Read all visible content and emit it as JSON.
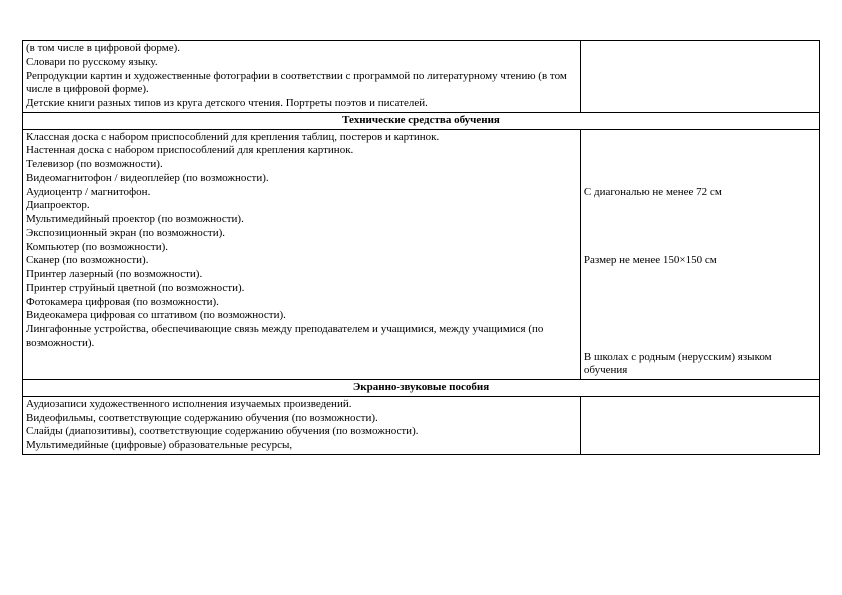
{
  "table": {
    "col_widths": [
      "70%",
      "30%"
    ],
    "rows": [
      {
        "type": "data",
        "left_lines": [
          "(в том числе в цифровой форме).",
          "Словари по русскому языку.",
          "Репродукции картин и художественные фотографии в соответствии с программой по литературному чтению (в том числе в цифровой форме).",
          "Детские книги разных типов из круга детского чтения. Портреты поэтов и писателей."
        ],
        "right_lines": []
      },
      {
        "type": "header",
        "text": "Технические средства обучения"
      },
      {
        "type": "data",
        "left_lines": [
          "Классная доска с набором приспособлений для крепления таблиц, постеров и картинок.",
          "Настенная доска с набором приспособлений для крепления картинок.",
          "Телевизор (по возможности).",
          "Видеомагнитофон / видеоплейер (по возможности).",
          "Аудиоцентр / магнитофон.",
          "Диапроектор.",
          "Мультимедийный проектор (по возможности).",
          "Экспозиционный экран (по возможности).",
          "Компьютер (по возможности).",
          "Сканер (по возможности).",
          "Принтер лазерный (по возможности).",
          "Принтер струйный цветной (по возможности).",
          "Фотокамера цифровая (по возможности).",
          "Видеокамера цифровая со штативом (по возможности).",
          "Лингафонные устройства, обеспечивающие связь между преподавателем и учащимися, между учащимися (по возможности)."
        ],
        "right_lines": [
          {
            "text": "",
            "blank_before": 0
          },
          {
            "text": "",
            "blank_before": 0
          },
          {
            "text": "",
            "blank_before": 0
          },
          {
            "text": "",
            "blank_before": 0
          },
          {
            "text": "С диагональю не менее 72 см",
            "blank_before": 0
          },
          {
            "text": "",
            "blank_before": 0
          },
          {
            "text": "",
            "blank_before": 0
          },
          {
            "text": "",
            "blank_before": 0
          },
          {
            "text": "",
            "blank_before": 0
          },
          {
            "text": "Размер не менее 150×150 см",
            "blank_before": 0
          },
          {
            "text": "",
            "blank_before": 0
          },
          {
            "text": "",
            "blank_before": 0
          },
          {
            "text": "",
            "blank_before": 0
          },
          {
            "text": "",
            "blank_before": 0
          },
          {
            "text": "",
            "blank_before": 0
          },
          {
            "text": "",
            "blank_before": 0
          },
          {
            "text": "В школах с родным (нерусским) языком обучения",
            "blank_before": 0
          }
        ]
      },
      {
        "type": "header",
        "text": "Экранно-звуковые пособия"
      },
      {
        "type": "data",
        "left_lines": [
          "Аудиозаписи художественного исполнения изучаемых произведений.",
          "Видеофильмы, соответствующие содержанию обучения (по возможности).",
          "Слайды (диапозитивы), соответствующие содержанию обучения (по возможности).",
          "Мультимедийные (цифровые) образовательные ресурсы,"
        ],
        "right_lines": []
      }
    ]
  },
  "style": {
    "font_family": "Times New Roman",
    "font_size_pt": 11,
    "text_color": "#000000",
    "border_color": "#000000",
    "background_color": "#ffffff"
  }
}
